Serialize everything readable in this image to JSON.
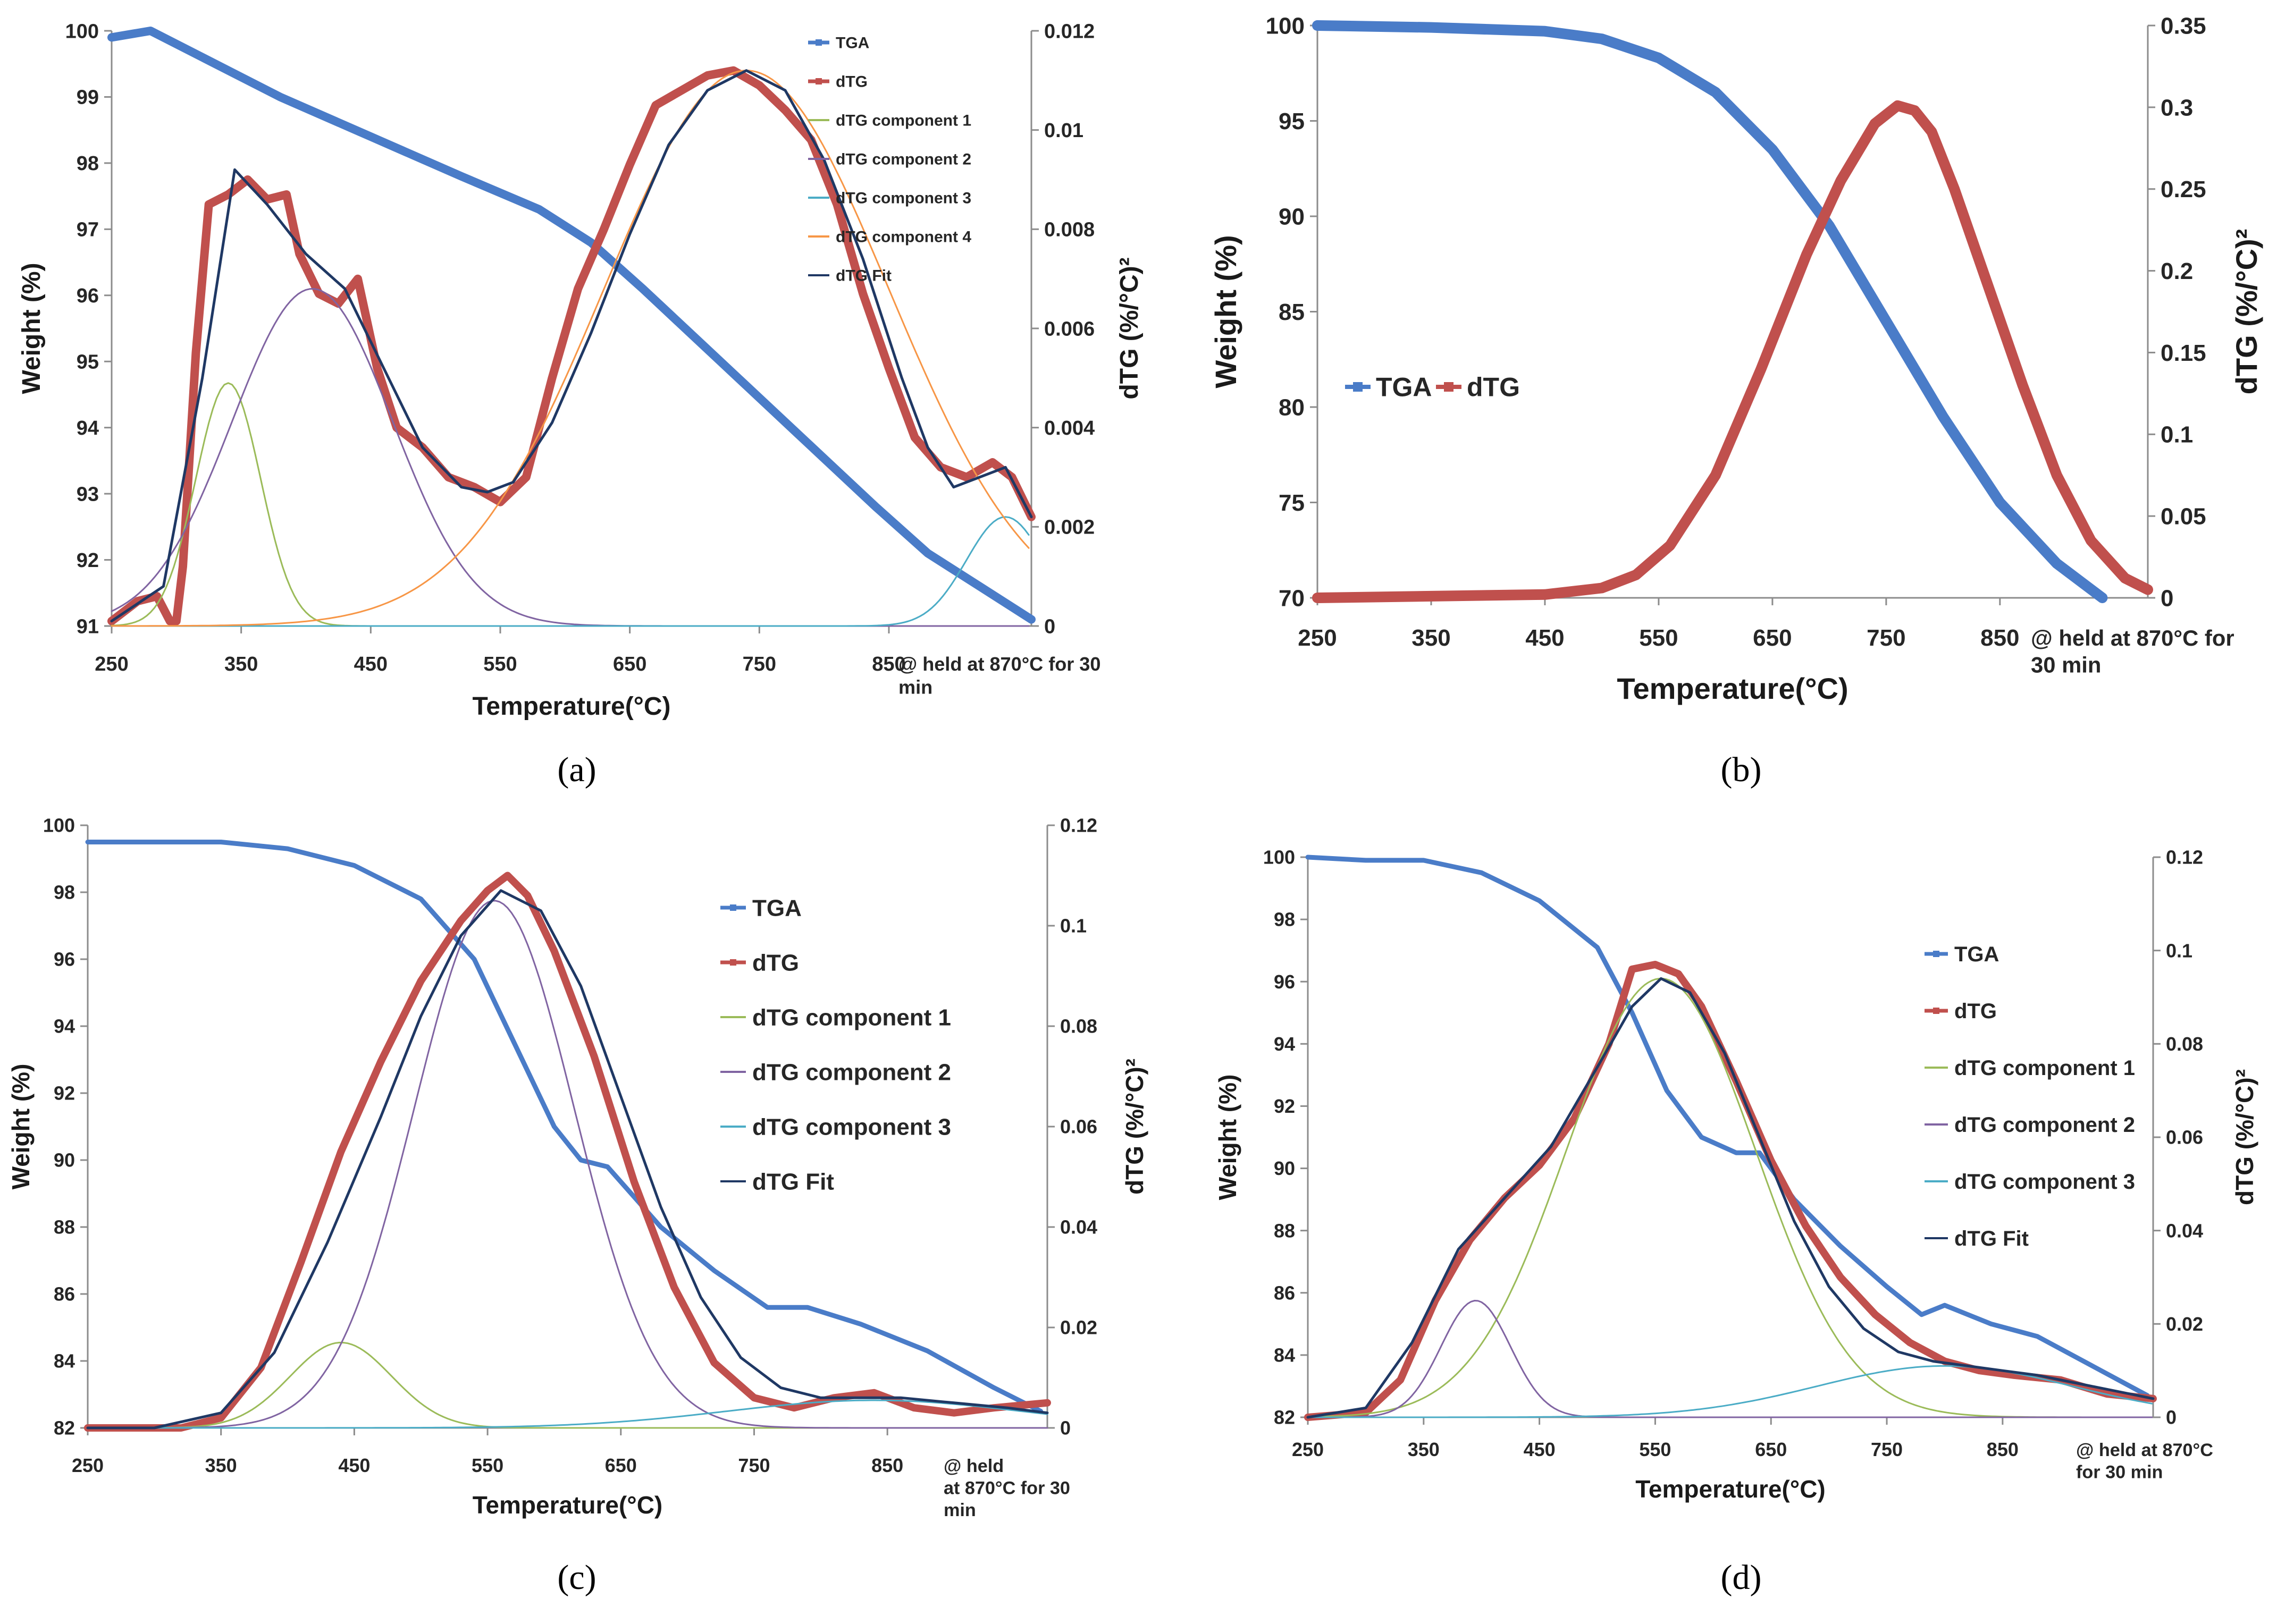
{
  "colors": {
    "TGA": "#4a7cc8",
    "dTG": "#c0504d",
    "component1": "#9bbb59",
    "component2": "#8064a2",
    "component3": "#4bacc6",
    "component4": "#f79646",
    "fit": "#1f3864"
  },
  "chart_data": [
    {
      "panel": "(a)",
      "type": "line",
      "xlabel": "Temperature(°C)",
      "ylabel": "Weight (%)",
      "y2label": "dTG (%/°C)²",
      "x_ticks": [
        "250",
        "350",
        "450",
        "550",
        "650",
        "750",
        "850"
      ],
      "x_note": "@ held at 870°C for 30 min",
      "xlim": [
        250,
        960
      ],
      "ylim": [
        91,
        100
      ],
      "y_ticks": [
        "91",
        "92",
        "93",
        "94",
        "95",
        "96",
        "97",
        "98",
        "99",
        "100"
      ],
      "y2lim": [
        0,
        0.012
      ],
      "y2_ticks": [
        "0",
        "0.002",
        "0.004",
        "0.006",
        "0.008",
        "0.01",
        "0.012"
      ],
      "legend_position": "top-right",
      "series": [
        {
          "name": "TGA",
          "axis": "left",
          "color": "#4a7cc8",
          "x": [
            250,
            280,
            320,
            380,
            450,
            520,
            580,
            620,
            660,
            720,
            780,
            840,
            880,
            920,
            960
          ],
          "y": [
            99.9,
            100,
            99.6,
            99.0,
            98.4,
            97.8,
            97.3,
            96.8,
            96.1,
            95.0,
            93.9,
            92.8,
            92.1,
            91.6,
            91.1
          ]
        },
        {
          "name": "dTG",
          "axis": "right",
          "color": "#c0504d",
          "x": [
            250,
            270,
            285,
            295,
            300,
            305,
            315,
            325,
            340,
            355,
            370,
            385,
            395,
            410,
            425,
            440,
            455,
            470,
            490,
            510,
            530,
            550,
            570,
            590,
            610,
            630,
            650,
            670,
            690,
            710,
            730,
            750,
            770,
            790,
            810,
            830,
            850,
            870,
            890,
            910,
            930,
            945,
            960
          ],
          "y": [
            0.0001,
            0.0005,
            0.0006,
            0.0001,
            0.0001,
            0.0012,
            0.0055,
            0.0085,
            0.0087,
            0.009,
            0.0086,
            0.0087,
            0.0075,
            0.0067,
            0.0065,
            0.007,
            0.0052,
            0.004,
            0.0036,
            0.003,
            0.0028,
            0.0025,
            0.003,
            0.005,
            0.0068,
            0.008,
            0.0093,
            0.0105,
            0.0108,
            0.0111,
            0.0112,
            0.0109,
            0.0104,
            0.0098,
            0.0085,
            0.0067,
            0.0052,
            0.0038,
            0.0032,
            0.003,
            0.0033,
            0.003,
            0.0022
          ]
        },
        {
          "name": "dTG component 1",
          "axis": "right",
          "color": "#9bbb59",
          "peak": [
            340,
            0.0049
          ],
          "width": 25
        },
        {
          "name": "dTG component 2",
          "axis": "right",
          "color": "#8064a2",
          "peak": [
            405,
            0.0068
          ],
          "width": 62
        },
        {
          "name": "dTG component 3",
          "axis": "right",
          "color": "#4bacc6",
          "peak": [
            940,
            0.0022
          ],
          "width": 30
        },
        {
          "name": "dTG component 4",
          "axis": "right",
          "color": "#f79646",
          "peak": [
            740,
            0.0112
          ],
          "width": 110
        },
        {
          "name": "dTG Fit",
          "axis": "right",
          "color": "#1f3864",
          "x": [
            250,
            290,
            320,
            345,
            370,
            400,
            430,
            460,
            490,
            520,
            540,
            560,
            590,
            620,
            650,
            680,
            710,
            740,
            770,
            800,
            830,
            860,
            880,
            900,
            920,
            940,
            960
          ],
          "y": [
            0.0001,
            0.0008,
            0.005,
            0.0092,
            0.0085,
            0.0075,
            0.0068,
            0.0052,
            0.0036,
            0.0028,
            0.0027,
            0.0029,
            0.0041,
            0.0059,
            0.0079,
            0.0097,
            0.0108,
            0.0112,
            0.0108,
            0.0094,
            0.0074,
            0.005,
            0.0036,
            0.0028,
            0.003,
            0.0032,
            0.0022
          ]
        }
      ]
    },
    {
      "panel": "(b)",
      "type": "line",
      "xlabel": "Temperature(°C)",
      "ylabel": "Weight (%)",
      "y2label": "dTG (%/°C)²",
      "x_ticks": [
        "250",
        "350",
        "450",
        "550",
        "650",
        "750",
        "850"
      ],
      "x_note": "@ held at 870°C for 30 min",
      "xlim": [
        250,
        980
      ],
      "ylim": [
        70,
        100
      ],
      "y_ticks": [
        "70",
        "75",
        "80",
        "85",
        "90",
        "95",
        "100"
      ],
      "y2lim": [
        0,
        0.35
      ],
      "y2_ticks": [
        "0",
        "0.05",
        "0.1",
        "0.15",
        "0.2",
        "0.25",
        "0.3",
        "0.35"
      ],
      "legend_position": "center-left",
      "series": [
        {
          "name": "TGA",
          "axis": "left",
          "color": "#4a7cc8",
          "x": [
            250,
            350,
            450,
            500,
            550,
            600,
            650,
            700,
            750,
            800,
            850,
            900,
            940
          ],
          "y": [
            100,
            99.9,
            99.7,
            99.3,
            98.3,
            96.5,
            93.5,
            89.5,
            84.5,
            79.5,
            75.0,
            71.8,
            70.0
          ]
        },
        {
          "name": "dTG",
          "axis": "right",
          "color": "#c0504d",
          "x": [
            250,
            350,
            450,
            500,
            530,
            560,
            600,
            640,
            680,
            710,
            740,
            760,
            775,
            790,
            810,
            840,
            870,
            900,
            930,
            960,
            980
          ],
          "y": [
            0,
            0.001,
            0.002,
            0.006,
            0.014,
            0.032,
            0.075,
            0.14,
            0.21,
            0.255,
            0.29,
            0.301,
            0.298,
            0.285,
            0.25,
            0.19,
            0.13,
            0.075,
            0.035,
            0.012,
            0.005
          ]
        }
      ]
    },
    {
      "panel": "(c)",
      "type": "line",
      "xlabel": "Temperature(°C)",
      "ylabel": "Weight (%)",
      "y2label": "dTG (%/°C)²",
      "x_ticks": [
        "250",
        "350",
        "450",
        "550",
        "650",
        "750",
        "850"
      ],
      "x_note": "@ held at 870°C for 30 min",
      "xlim": [
        250,
        970
      ],
      "ylim": [
        82,
        100
      ],
      "y_ticks": [
        "82",
        "84",
        "86",
        "88",
        "90",
        "92",
        "94",
        "96",
        "98",
        "100"
      ],
      "y2lim": [
        0,
        0.12
      ],
      "y2_ticks": [
        "0",
        "0.02",
        "0.04",
        "0.06",
        "0.08",
        "0.1",
        "0.12"
      ],
      "legend_position": "center-right",
      "series": [
        {
          "name": "TGA",
          "axis": "left",
          "color": "#4a7cc8",
          "x": [
            250,
            300,
            350,
            400,
            450,
            500,
            540,
            570,
            600,
            620,
            640,
            680,
            720,
            760,
            790,
            830,
            880,
            930,
            965
          ],
          "y": [
            99.5,
            99.5,
            99.5,
            99.3,
            98.8,
            97.8,
            96.0,
            93.5,
            91.0,
            90.0,
            89.8,
            88.0,
            86.7,
            85.6,
            85.6,
            85.1,
            84.3,
            83.2,
            82.5
          ]
        },
        {
          "name": "dTG",
          "axis": "right",
          "color": "#c0504d",
          "x": [
            250,
            300,
            320,
            350,
            380,
            410,
            440,
            470,
            500,
            530,
            550,
            565,
            580,
            600,
            630,
            660,
            690,
            720,
            750,
            780,
            810,
            840,
            870,
            900,
            930,
            970
          ],
          "y": [
            0,
            0,
            0,
            0.002,
            0.012,
            0.033,
            0.055,
            0.073,
            0.089,
            0.101,
            0.107,
            0.11,
            0.106,
            0.095,
            0.074,
            0.049,
            0.028,
            0.013,
            0.006,
            0.004,
            0.006,
            0.007,
            0.004,
            0.003,
            0.004,
            0.005
          ]
        },
        {
          "name": "dTG component 1",
          "axis": "right",
          "color": "#9bbb59",
          "peak": [
            440,
            0.017
          ],
          "width": 38
        },
        {
          "name": "dTG component  2",
          "axis": "right",
          "color": "#8064a2",
          "peak": [
            555,
            0.105
          ],
          "width": 60
        },
        {
          "name": "dTG component  3",
          "axis": "right",
          "color": "#4bacc6",
          "peak": [
            840,
            0.0055
          ],
          "width": 110
        },
        {
          "name": "dTG Fit",
          "axis": "right",
          "color": "#1f3864",
          "x": [
            250,
            300,
            350,
            390,
            430,
            470,
            500,
            530,
            560,
            590,
            620,
            650,
            680,
            710,
            740,
            770,
            800,
            830,
            860,
            900,
            940,
            970
          ],
          "y": [
            0,
            0,
            0.003,
            0.015,
            0.037,
            0.062,
            0.082,
            0.098,
            0.107,
            0.103,
            0.088,
            0.066,
            0.044,
            0.026,
            0.014,
            0.008,
            0.006,
            0.006,
            0.006,
            0.005,
            0.004,
            0.003
          ]
        }
      ]
    },
    {
      "panel": "(d)",
      "type": "line",
      "xlabel": "Temperature(°C)",
      "ylabel": "Weight (%)",
      "y2label": "dTG (%/°C)²",
      "x_ticks": [
        "250",
        "350",
        "450",
        "550",
        "650",
        "750",
        "850"
      ],
      "x_note": "@ held at 870°C for 30 min",
      "xlim": [
        250,
        980
      ],
      "ylim": [
        82,
        100
      ],
      "y_ticks": [
        "82",
        "84",
        "86",
        "88",
        "90",
        "92",
        "94",
        "96",
        "98",
        "100"
      ],
      "y2lim": [
        0,
        0.12
      ],
      "y2_ticks": [
        "0",
        "0.02",
        "0.04",
        "0.06",
        "0.08",
        "0.1",
        "0.12"
      ],
      "legend_position": "center-right",
      "series": [
        {
          "name": "TGA",
          "axis": "left",
          "color": "#4a7cc8",
          "x": [
            250,
            300,
            350,
            400,
            450,
            500,
            530,
            560,
            590,
            620,
            640,
            670,
            710,
            750,
            780,
            800,
            840,
            880,
            930,
            975
          ],
          "y": [
            100,
            99.9,
            99.9,
            99.5,
            98.6,
            97.1,
            95.0,
            92.5,
            91.0,
            90.5,
            90.5,
            89.0,
            87.5,
            86.2,
            85.3,
            85.6,
            85.0,
            84.6,
            83.6,
            82.7
          ]
        },
        {
          "name": "dTG",
          "axis": "right",
          "color": "#c0504d",
          "x": [
            250,
            300,
            330,
            360,
            390,
            420,
            450,
            480,
            510,
            530,
            550,
            570,
            590,
            620,
            650,
            680,
            710,
            740,
            770,
            800,
            830,
            860,
            900,
            940,
            980
          ],
          "y": [
            0,
            0.001,
            0.008,
            0.025,
            0.038,
            0.047,
            0.054,
            0.064,
            0.08,
            0.096,
            0.097,
            0.095,
            0.088,
            0.072,
            0.055,
            0.041,
            0.03,
            0.022,
            0.016,
            0.012,
            0.01,
            0.009,
            0.008,
            0.005,
            0.004
          ]
        },
        {
          "name": "dTG component 1",
          "axis": "right",
          "color": "#9bbb59",
          "peak": [
            555,
            0.094
          ],
          "width": 82
        },
        {
          "name": "dTG component 2",
          "axis": "right",
          "color": "#8064a2",
          "peak": [
            395,
            0.025
          ],
          "width": 30
        },
        {
          "name": "dTG component 3",
          "axis": "right",
          "color": "#4bacc6",
          "peak": [
            800,
            0.011
          ],
          "width": 110
        },
        {
          "name": "dTG Fit",
          "axis": "right",
          "color": "#1f3864",
          "x": [
            250,
            300,
            340,
            380,
            420,
            460,
            500,
            530,
            555,
            580,
            610,
            640,
            670,
            700,
            730,
            760,
            790,
            820,
            850,
            880,
            920,
            960,
            980
          ],
          "y": [
            0,
            0.002,
            0.016,
            0.036,
            0.047,
            0.058,
            0.075,
            0.088,
            0.094,
            0.091,
            0.078,
            0.06,
            0.042,
            0.028,
            0.019,
            0.014,
            0.012,
            0.011,
            0.01,
            0.009,
            0.007,
            0.005,
            0.004
          ]
        }
      ]
    }
  ],
  "captions": [
    "(a)",
    "(b)",
    "(c)",
    "(d)"
  ]
}
